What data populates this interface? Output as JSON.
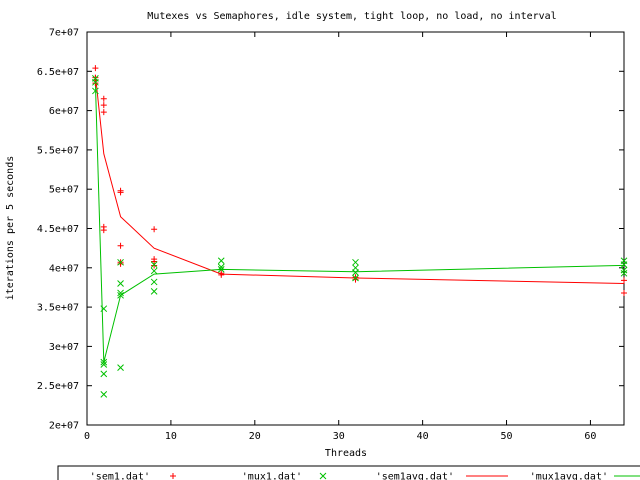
{
  "chart_data": {
    "type": "scatter",
    "title": "Mutexes vs Semaphores, idle system, tight loop, no load, no interval",
    "xlabel": "Threads",
    "ylabel": "iterations per 5 seconds",
    "xlim": [
      0,
      64
    ],
    "ylim": [
      20000000,
      70000000
    ],
    "xticks": [
      {
        "v": 0,
        "label": "0"
      },
      {
        "v": 10,
        "label": "10"
      },
      {
        "v": 20,
        "label": "20"
      },
      {
        "v": 30,
        "label": "30"
      },
      {
        "v": 40,
        "label": "40"
      },
      {
        "v": 50,
        "label": "50"
      },
      {
        "v": 60,
        "label": "60"
      }
    ],
    "yticks": [
      {
        "v": 20000000,
        "label": "2e+07"
      },
      {
        "v": 25000000,
        "label": "2.5e+07"
      },
      {
        "v": 30000000,
        "label": "3e+07"
      },
      {
        "v": 35000000,
        "label": "3.5e+07"
      },
      {
        "v": 40000000,
        "label": "4e+07"
      },
      {
        "v": 45000000,
        "label": "4.5e+07"
      },
      {
        "v": 50000000,
        "label": "5e+07"
      },
      {
        "v": 55000000,
        "label": "5.5e+07"
      },
      {
        "v": 60000000,
        "label": "6e+07"
      },
      {
        "v": 65000000,
        "label": "6.5e+07"
      },
      {
        "v": 70000000,
        "label": "7e+07"
      }
    ],
    "grid": false,
    "legend_position": "bottom",
    "series": [
      {
        "name": "'sem1.dat'",
        "style": "points",
        "marker": "+",
        "color": "#ff0000",
        "points": [
          [
            1,
            65400000
          ],
          [
            1,
            64200000
          ],
          [
            1,
            63900000
          ],
          [
            1,
            63500000
          ],
          [
            2,
            61500000
          ],
          [
            2,
            60700000
          ],
          [
            2,
            59800000
          ],
          [
            2,
            45200000
          ],
          [
            2,
            44800000
          ],
          [
            4,
            49800000
          ],
          [
            4,
            49600000
          ],
          [
            4,
            42800000
          ],
          [
            4,
            40700000
          ],
          [
            4,
            40500000
          ],
          [
            8,
            44900000
          ],
          [
            8,
            41100000
          ],
          [
            8,
            40800000
          ],
          [
            8,
            40300000
          ],
          [
            16,
            39300000
          ],
          [
            16,
            39100000
          ],
          [
            32,
            38800000
          ],
          [
            32,
            38500000
          ],
          [
            64,
            38400000
          ],
          [
            64,
            36800000
          ]
        ]
      },
      {
        "name": "'mux1.dat'",
        "style": "points",
        "marker": "x",
        "color": "#00c000",
        "points": [
          [
            1,
            64100000
          ],
          [
            1,
            63600000
          ],
          [
            1,
            62500000
          ],
          [
            2,
            34800000
          ],
          [
            2,
            28000000
          ],
          [
            2,
            27700000
          ],
          [
            2,
            26500000
          ],
          [
            2,
            23900000
          ],
          [
            4,
            38000000
          ],
          [
            4,
            36800000
          ],
          [
            4,
            36500000
          ],
          [
            4,
            27300000
          ],
          [
            4,
            40700000
          ],
          [
            8,
            39600000
          ],
          [
            8,
            38200000
          ],
          [
            8,
            37000000
          ],
          [
            8,
            40400000
          ],
          [
            16,
            40900000
          ],
          [
            16,
            40100000
          ],
          [
            16,
            39800000
          ],
          [
            32,
            40700000
          ],
          [
            32,
            40000000
          ],
          [
            32,
            39400000
          ],
          [
            32,
            38700000
          ],
          [
            64,
            40900000
          ],
          [
            64,
            40400000
          ],
          [
            64,
            39700000
          ],
          [
            64,
            39300000
          ]
        ]
      },
      {
        "name": "'sem1avg.dat'",
        "style": "line",
        "color": "#ff0000",
        "points": [
          [
            1,
            64500000
          ],
          [
            2,
            54500000
          ],
          [
            4,
            46500000
          ],
          [
            8,
            42500000
          ],
          [
            16,
            39200000
          ],
          [
            32,
            38700000
          ],
          [
            64,
            38000000
          ]
        ]
      },
      {
        "name": "'mux1avg.dat'",
        "style": "line",
        "color": "#00c000",
        "points": [
          [
            1,
            63500000
          ],
          [
            2,
            28000000
          ],
          [
            4,
            36500000
          ],
          [
            8,
            39200000
          ],
          [
            16,
            39800000
          ],
          [
            32,
            39500000
          ],
          [
            64,
            40300000
          ]
        ]
      }
    ]
  }
}
